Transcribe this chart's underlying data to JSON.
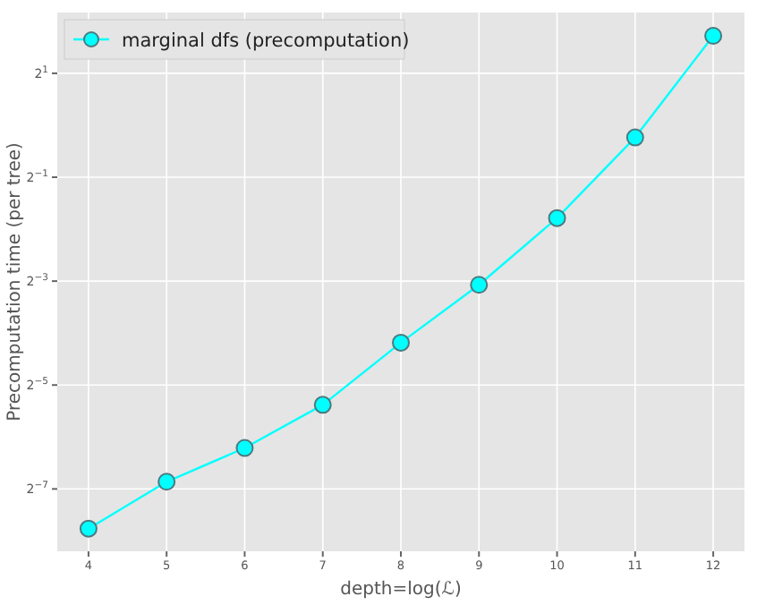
{
  "chart_data": {
    "type": "line",
    "xlabel": "depth=log(ℒ)",
    "ylabel": "Precomputation time (per tree)",
    "x": [
      4,
      5,
      6,
      7,
      8,
      9,
      10,
      11,
      12
    ],
    "series": [
      {
        "name": "marginal dfs (precomputation)",
        "color": "#00ffff",
        "values": [
          0.0046,
          0.0086,
          0.0135,
          0.024,
          0.055,
          0.119,
          0.29,
          0.85,
          3.3
        ]
      }
    ],
    "xlim": [
      3.6,
      12.4
    ],
    "xticks": [
      4,
      5,
      6,
      7,
      8,
      9,
      10,
      11,
      12
    ],
    "ylim": [
      0.0034,
      4.5
    ],
    "yticks": [
      {
        "value": 0.0078125,
        "label": "2$^{−7}$"
      },
      {
        "value": 0.03125,
        "label": "2$^{−5}$"
      },
      {
        "value": 0.125,
        "label": "2$^{−3}$"
      },
      {
        "value": 0.5,
        "label": "2$^{−1}$"
      },
      {
        "value": 2,
        "label": "2$^{1}$"
      }
    ],
    "log": "y",
    "grid": true,
    "legend": "top left",
    "marker": "circle",
    "line_style": "solid"
  }
}
